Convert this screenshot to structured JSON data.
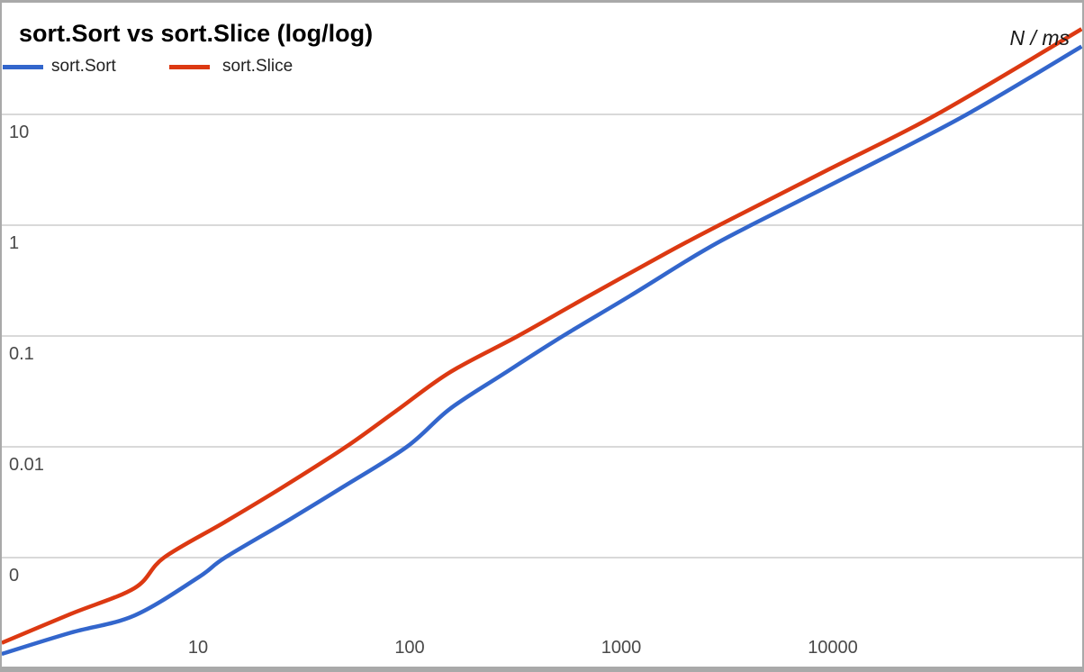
{
  "window": {
    "background": "#ffffff",
    "frame_color": "#a9a9a9",
    "gridline_color": "#d9d9d9",
    "axis_label_color": "#494949"
  },
  "header": {
    "title": "sort.Sort vs sort.Slice (log/log)",
    "unit_label": "N / ms"
  },
  "legend": [
    {
      "label": "sort.Sort",
      "color": "#3366cc"
    },
    {
      "label": "sort.Slice",
      "color": "#dc3912"
    }
  ],
  "chart_data": {
    "type": "line",
    "title": "sort.Sort vs sort.Slice (log/log)",
    "xlabel": "N",
    "ylabel": "ms",
    "grid": "horizontal-only",
    "legend_position": "top-left",
    "x_axis": {
      "scale": "log",
      "min": 1.18,
      "max": 151000,
      "ticks": [
        {
          "label": "10",
          "value": 10
        },
        {
          "label": "100",
          "value": 100
        },
        {
          "label": "1000",
          "value": 1000
        },
        {
          "label": "10000",
          "value": 10000
        }
      ]
    },
    "y_axis": {
      "scale": "log",
      "min": 0.000104,
      "max": 102,
      "gridlines": [
        {
          "label": "10",
          "value": 10
        },
        {
          "label": "1",
          "value": 1
        },
        {
          "label": "0.1",
          "value": 0.1
        },
        {
          "label": "0.01",
          "value": 0.01
        },
        {
          "label": "0",
          "value": 0.001
        }
      ]
    },
    "series": [
      {
        "name": "sort.Sort",
        "color": "#3366cc",
        "points": [
          [
            1.18,
            0.000135
          ],
          [
            2.5,
            0.00021
          ],
          [
            5,
            0.0003
          ],
          [
            10,
            0.00066
          ],
          [
            13.4,
            0.001
          ],
          [
            27,
            0.0022
          ],
          [
            48,
            0.0043
          ],
          [
            97,
            0.01
          ],
          [
            155,
            0.022
          ],
          [
            280,
            0.046
          ],
          [
            530,
            0.1
          ],
          [
            1100,
            0.23
          ],
          [
            2340,
            0.56
          ],
          [
            4100,
            1.0
          ],
          [
            12800,
            3.0
          ],
          [
            43000,
            10
          ],
          [
            150000,
            41
          ]
        ]
      },
      {
        "name": "sort.Slice",
        "color": "#dc3912",
        "points": [
          [
            1.18,
            0.00017
          ],
          [
            2.5,
            0.00031
          ],
          [
            5,
            0.00053
          ],
          [
            6.9,
            0.001
          ],
          [
            13.4,
            0.0021
          ],
          [
            25,
            0.0043
          ],
          [
            50,
            0.01
          ],
          [
            86,
            0.021
          ],
          [
            155,
            0.047
          ],
          [
            325,
            0.1
          ],
          [
            675,
            0.22
          ],
          [
            1630,
            0.56
          ],
          [
            2900,
            1.0
          ],
          [
            9600,
            3.2
          ],
          [
            31000,
            10
          ],
          [
            150000,
            59
          ]
        ]
      }
    ]
  }
}
